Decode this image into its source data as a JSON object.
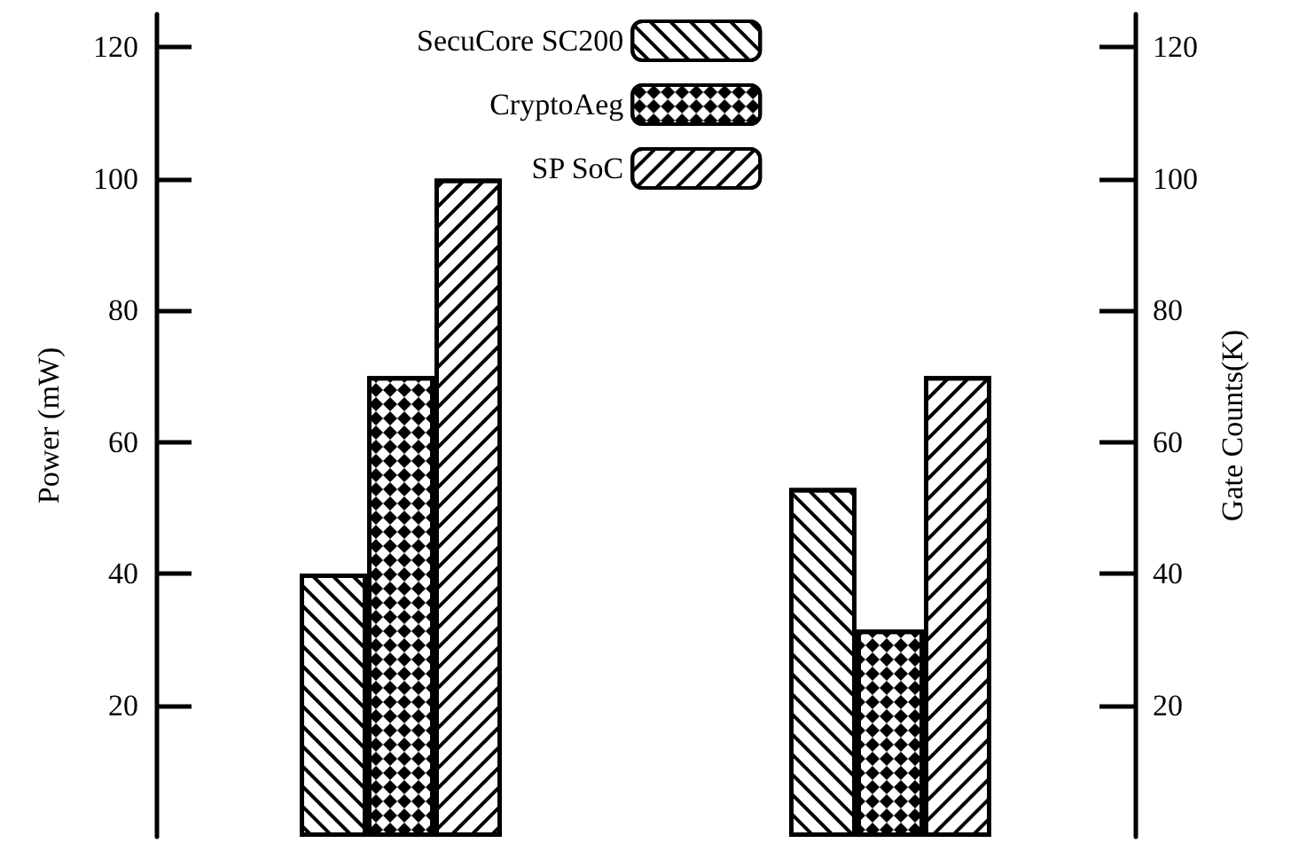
{
  "chart_data": {
    "type": "bar",
    "ylabel": "Power (mW)",
    "y2label": "Gate Counts(K)",
    "categories": [
      null,
      null
    ],
    "series": [
      {
        "name": "SecuCore SC200",
        "color": "#000000",
        "values": [
          40,
          53
        ]
      },
      {
        "name": "CryptoAeg",
        "color": "#000000",
        "values": [
          70,
          31.5
        ]
      },
      {
        "name": "SP SoC",
        "color": "#000000",
        "values": [
          100,
          70
        ]
      }
    ],
    "ylim": [
      0,
      125
    ],
    "yticks": [
      20,
      40,
      60,
      80,
      100,
      120
    ],
    "y2lim": [
      0,
      125
    ],
    "y2ticks": [
      20,
      40,
      60,
      80,
      100,
      120
    ],
    "legend": "top",
    "grid": false
  }
}
